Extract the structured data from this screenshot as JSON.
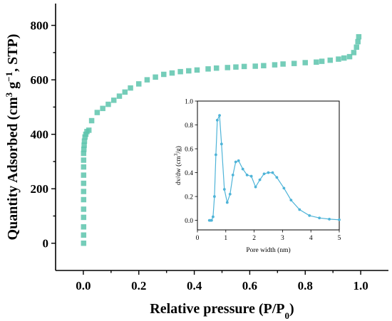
{
  "chart_data": [
    {
      "type": "scatter",
      "xlabel": "Relative pressure (P/P0)",
      "ylabel": "Quantity Adsorbed (cm3 g−1, STP)",
      "xlim": [
        -0.1,
        1.1
      ],
      "ylim": [
        -100,
        880
      ],
      "xticks": [
        "0.0",
        "0.2",
        "0.4",
        "0.6",
        "0.8",
        "1.0"
      ],
      "yticks": [
        "0",
        "200",
        "400",
        "600",
        "800"
      ],
      "series": [
        {
          "color": "#5dc4ad",
          "marker": "square",
          "x": [
            0.001,
            0.001,
            0.001,
            0.001,
            0.001,
            0.001,
            0.001,
            0.001,
            0.001,
            0.001,
            0.001,
            0.001,
            0.002,
            0.003,
            0.004,
            0.006,
            0.009,
            0.013,
            0.02,
            0.03,
            0.05,
            0.07,
            0.09,
            0.11,
            0.13,
            0.15,
            0.17,
            0.2,
            0.23,
            0.26,
            0.29,
            0.32,
            0.35,
            0.38,
            0.41,
            0.45,
            0.48,
            0.52,
            0.55,
            0.58,
            0.62,
            0.65,
            0.69,
            0.72,
            0.76,
            0.8,
            0.84,
            0.86,
            0.89,
            0.92,
            0.94,
            0.96,
            0.975,
            0.985,
            0.99,
            0.993
          ],
          "y": [
            0,
            30,
            60,
            95,
            125,
            160,
            190,
            220,
            250,
            280,
            305,
            330,
            345,
            360,
            375,
            390,
            400,
            410,
            415,
            450,
            480,
            495,
            510,
            525,
            540,
            555,
            570,
            585,
            600,
            610,
            620,
            625,
            630,
            633,
            636,
            640,
            643,
            645,
            647,
            649,
            650,
            652,
            655,
            658,
            660,
            663,
            665,
            668,
            672,
            676,
            680,
            685,
            700,
            720,
            740,
            758
          ]
        }
      ]
    },
    {
      "type": "line",
      "xlabel": "Pore width (nm)",
      "ylabel": "dv/dw (cm3/g)",
      "xlim": [
        0,
        5
      ],
      "ylim": [
        -0.08,
        1.0
      ],
      "xticks": [
        "0",
        "1",
        "2",
        "3",
        "4",
        "5"
      ],
      "yticks": [
        "0.0",
        "0.2",
        "0.4",
        "0.6",
        "0.8",
        "1.0"
      ],
      "series": [
        {
          "color": "#4fb4d8",
          "x": [
            0.42,
            0.46,
            0.5,
            0.55,
            0.6,
            0.65,
            0.7,
            0.78,
            0.85,
            0.95,
            1.05,
            1.15,
            1.25,
            1.35,
            1.45,
            1.6,
            1.75,
            1.9,
            2.05,
            2.2,
            2.35,
            2.5,
            2.65,
            2.8,
            3.05,
            3.3,
            3.6,
            3.95,
            4.3,
            4.65,
            5.0
          ],
          "y": [
            0.0,
            0.0,
            0.0,
            0.03,
            0.2,
            0.55,
            0.84,
            0.88,
            0.64,
            0.26,
            0.15,
            0.22,
            0.38,
            0.49,
            0.5,
            0.43,
            0.38,
            0.37,
            0.28,
            0.34,
            0.39,
            0.4,
            0.4,
            0.36,
            0.27,
            0.17,
            0.09,
            0.04,
            0.02,
            0.01,
            0.005
          ]
        }
      ]
    }
  ]
}
